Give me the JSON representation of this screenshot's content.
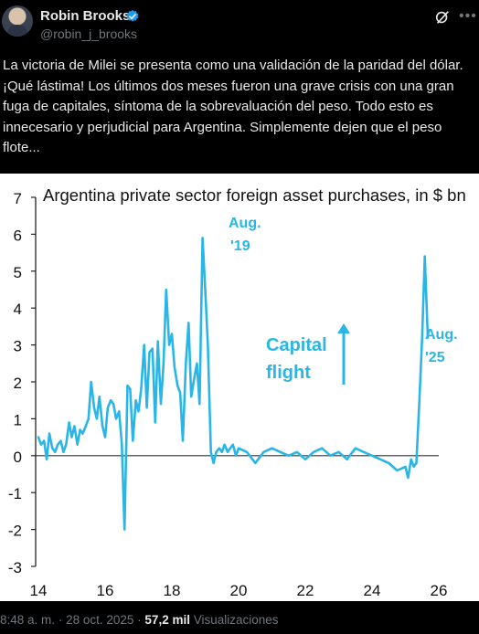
{
  "author": {
    "name": "Robin Brooks",
    "handle": "@robin_j_brooks"
  },
  "tweet": {
    "text": "La victoria de Milei se presenta como una validación de la paridad del dólar. ¡Qué lástima! Los últimos dos meses fueron una grave crisis con una gran fuga de capitales, síntoma de la sobrevaluación del peso. Todo esto es innecesario y perjudicial para Argentina. Simplemente dejen que el peso flote..."
  },
  "footer": {
    "time": "8:48 a. m.",
    "separator": "·",
    "date": "28 oct. 2025",
    "views": "57,2 mil",
    "views_label": "Visualizaciones"
  },
  "icons": {
    "verified": "verified-badge-icon",
    "grok": "grok-icon",
    "more": "more-icon"
  },
  "colors": {
    "line": "#29b6e6",
    "verified": "#1d9bf0"
  },
  "chart_data": {
    "type": "line",
    "title": "Argentina private sector foreign asset purchases, in $ bn",
    "xlabel": "",
    "ylabel": "",
    "xlim": [
      14,
      26.5
    ],
    "ylim": [
      -3,
      7
    ],
    "yticks": [
      "7",
      "6",
      "5",
      "4",
      "3",
      "2",
      "1",
      "0",
      "-1",
      "-2",
      "-3"
    ],
    "ytick_values": [
      7,
      6,
      5,
      4,
      3,
      2,
      1,
      0,
      -1,
      -2,
      -3
    ],
    "xticks": [
      "14",
      "16",
      "18",
      "20",
      "22",
      "24",
      "26"
    ],
    "xtick_values": [
      14,
      16,
      18,
      20,
      22,
      24,
      26
    ],
    "annotations": {
      "aug19_line1": "Aug.",
      "aug19_line2": "'19",
      "capital_line1": "Capital",
      "capital_line2": "flight",
      "aug25_line1": "Aug.",
      "aug25_line2": "'25"
    },
    "series": [
      {
        "x": [
          14.0,
          14.08,
          14.17,
          14.25,
          14.33,
          14.42,
          14.5,
          14.58,
          14.67,
          14.75,
          14.83,
          14.92,
          15.0,
          15.08,
          15.17,
          15.25,
          15.33,
          15.42,
          15.5,
          15.58,
          15.67,
          15.75,
          15.83,
          15.92,
          16.0,
          16.08,
          16.17,
          16.25,
          16.33,
          16.42,
          16.5,
          16.58,
          16.67,
          16.75,
          16.83,
          16.92,
          17.0,
          17.08,
          17.17,
          17.25,
          17.33,
          17.42,
          17.5,
          17.58,
          17.67,
          17.75,
          17.83,
          17.92,
          18.0,
          18.08,
          18.17,
          18.25,
          18.33,
          18.42,
          18.5,
          18.58,
          18.67,
          18.75,
          18.83,
          18.92,
          19.0,
          19.08,
          19.17,
          19.25,
          19.33,
          19.42,
          19.5,
          19.58,
          19.67,
          19.75,
          19.83,
          19.92,
          20.0,
          20.25,
          20.5,
          20.75,
          21.0,
          21.25,
          21.5,
          21.75,
          22.0,
          22.25,
          22.5,
          22.75,
          23.0,
          23.25,
          23.5,
          23.75,
          24.0,
          24.25,
          24.5,
          24.75,
          25.0,
          25.08,
          25.17,
          25.25,
          25.33,
          25.42,
          25.5,
          25.58,
          25.67
        ],
        "y": [
          0.5,
          0.3,
          0.4,
          -0.1,
          0.6,
          0.2,
          0.1,
          0.3,
          0.4,
          0.1,
          0.3,
          0.9,
          0.5,
          0.8,
          0.3,
          0.7,
          0.6,
          0.8,
          1.0,
          2.0,
          1.3,
          1.0,
          1.6,
          0.8,
          0.5,
          1.3,
          1.5,
          1.4,
          1.0,
          1.2,
          0.3,
          -2.0,
          1.9,
          1.8,
          0.4,
          1.5,
          1.2,
          1.8,
          3.0,
          1.3,
          2.8,
          2.9,
          0.9,
          3.1,
          1.4,
          2.5,
          4.5,
          3.0,
          3.3,
          2.4,
          1.9,
          1.7,
          0.4,
          2.5,
          3.6,
          1.6,
          2.1,
          2.5,
          1.4,
          5.9,
          4.5,
          3.0,
          0.1,
          -0.2,
          0.1,
          0.2,
          0.1,
          0.3,
          0.1,
          0.2,
          0.3,
          0.0,
          0.2,
          0.1,
          -0.2,
          0.1,
          0.2,
          0.1,
          0.0,
          0.1,
          -0.1,
          0.1,
          0.2,
          0.0,
          0.1,
          -0.1,
          0.2,
          0.1,
          0.0,
          -0.1,
          -0.2,
          -0.4,
          -0.3,
          -0.6,
          -0.1,
          -0.3,
          -0.2,
          1.5,
          3.2,
          5.4,
          3.2
        ]
      }
    ]
  }
}
